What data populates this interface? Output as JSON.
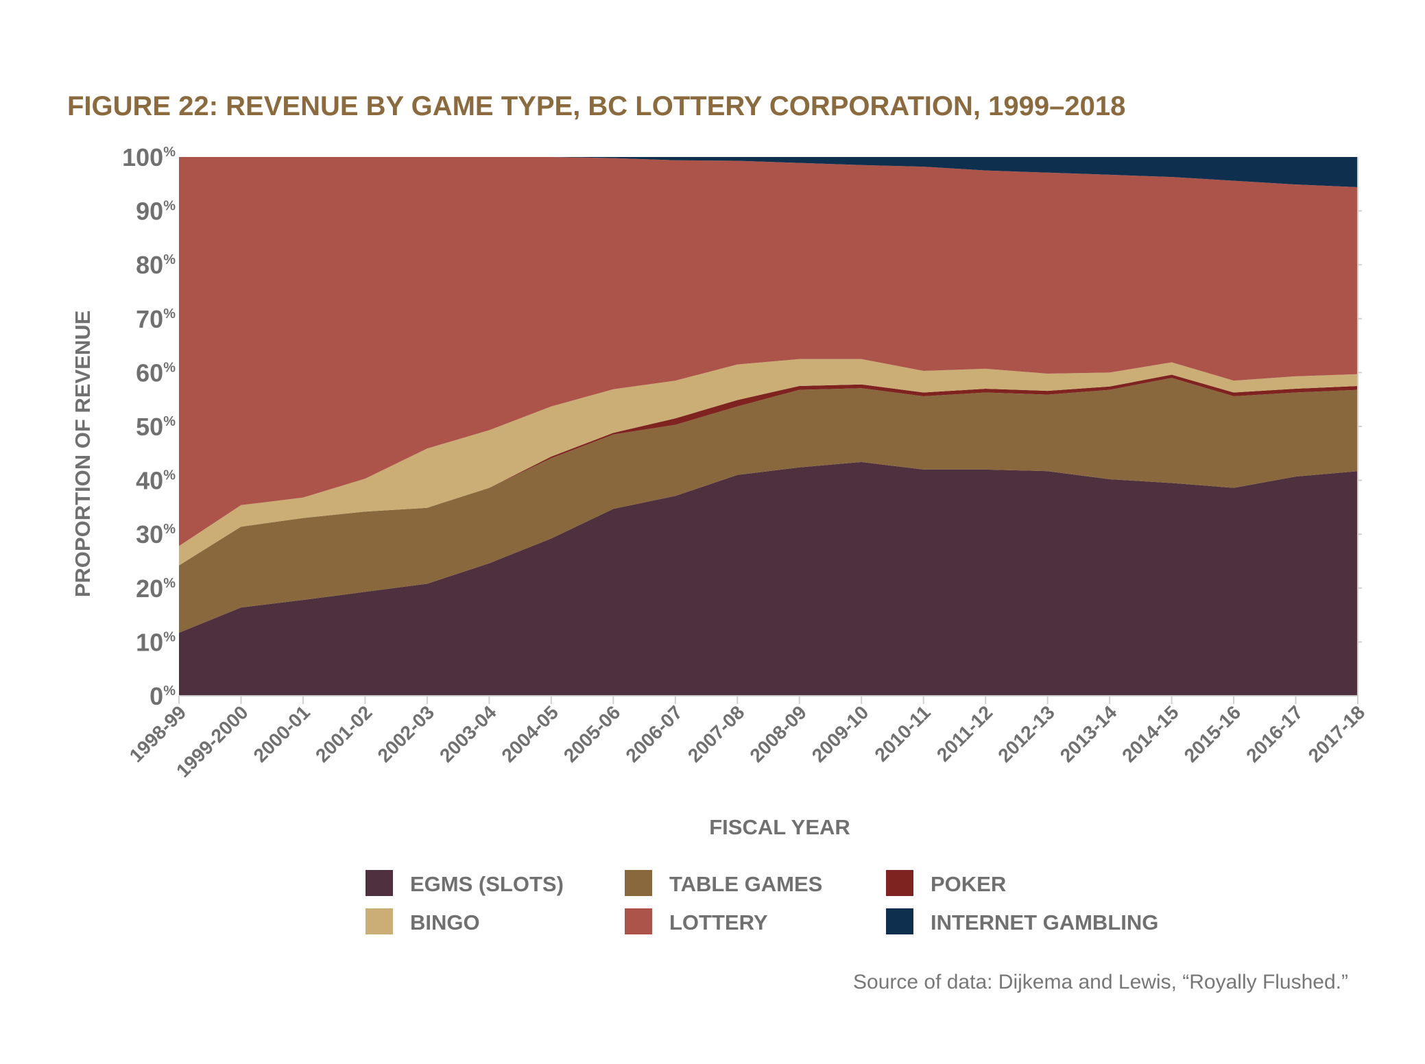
{
  "chart_data": {
    "type": "area",
    "stacked": true,
    "normalized": true,
    "title": "FIGURE 22: REVENUE BY GAME TYPE, BC LOTTERY CORPORATION, 1999–2018",
    "xlabel": "FISCAL YEAR",
    "ylabel": "PROPORTION OF REVENUE",
    "ylim": [
      0,
      100
    ],
    "yticks": [
      "0%",
      "10%",
      "20%",
      "30%",
      "40%",
      "50%",
      "60%",
      "70%",
      "80%",
      "90%",
      "100%"
    ],
    "categories": [
      "1998-99",
      "1999-2000",
      "2000-01",
      "2001-02",
      "2002-03",
      "2003-04",
      "2004-05",
      "2005-06",
      "2006-07",
      "2007-08",
      "2008-09",
      "2009-10",
      "2010-11",
      "2011-12",
      "2012-13",
      "2013-14",
      "2014-15",
      "2015-16",
      "2016-17",
      "2017-18"
    ],
    "series": [
      {
        "name": "EGMS (SLOTS)",
        "color": "#4F303F",
        "values": [
          11.7,
          16.4,
          17.8,
          19.3,
          20.8,
          24.6,
          29.2,
          34.7,
          37.1,
          41.0,
          42.4,
          43.4,
          42.0,
          42.0,
          41.7,
          40.2,
          39.5,
          38.6,
          40.7,
          41.7
        ]
      },
      {
        "name": "TABLE GAMES",
        "color": "#88683C",
        "values": [
          12.5,
          15.0,
          15.2,
          14.9,
          14.1,
          14.0,
          14.9,
          13.8,
          13.2,
          12.7,
          14.4,
          13.7,
          13.6,
          14.3,
          14.2,
          16.6,
          19.5,
          17.0,
          15.6,
          15.1
        ]
      },
      {
        "name": "POKER",
        "color": "#7E2320",
        "values": [
          0,
          0,
          0,
          0,
          0,
          0,
          0.3,
          0.3,
          1.2,
          1.2,
          0.7,
          0.7,
          0.7,
          0.7,
          0.7,
          0.6,
          0.6,
          0.7,
          0.7,
          0.7
        ]
      },
      {
        "name": "BINGO",
        "color": "#CBAE76",
        "values": [
          3.6,
          4.0,
          3.8,
          6.1,
          11.0,
          10.7,
          9.3,
          8.1,
          7.0,
          6.6,
          5.0,
          4.7,
          4.0,
          3.7,
          3.2,
          2.6,
          2.3,
          2.2,
          2.3,
          2.2
        ]
      },
      {
        "name": "LOTTERY",
        "color": "#AD544A",
        "values": [
          72.2,
          64.6,
          63.2,
          59.7,
          54.1,
          50.7,
          46.3,
          42.9,
          40.9,
          37.8,
          36.4,
          36.0,
          37.9,
          36.8,
          37.3,
          36.7,
          34.4,
          37.1,
          35.6,
          34.7
        ]
      },
      {
        "name": "INTERNET GAMBLING",
        "color": "#0E2F4D",
        "values": [
          0,
          0,
          0,
          0,
          0,
          0,
          0,
          0.2,
          0.6,
          0.7,
          1.1,
          1.5,
          1.8,
          2.5,
          2.9,
          3.3,
          3.7,
          4.4,
          5.1,
          5.6
        ]
      }
    ],
    "legend_order": [
      0,
      1,
      2,
      3,
      4,
      5
    ],
    "legend_position": "bottom",
    "source": "Source of data: Dijkema and Lewis, “Royally Flushed.”"
  }
}
